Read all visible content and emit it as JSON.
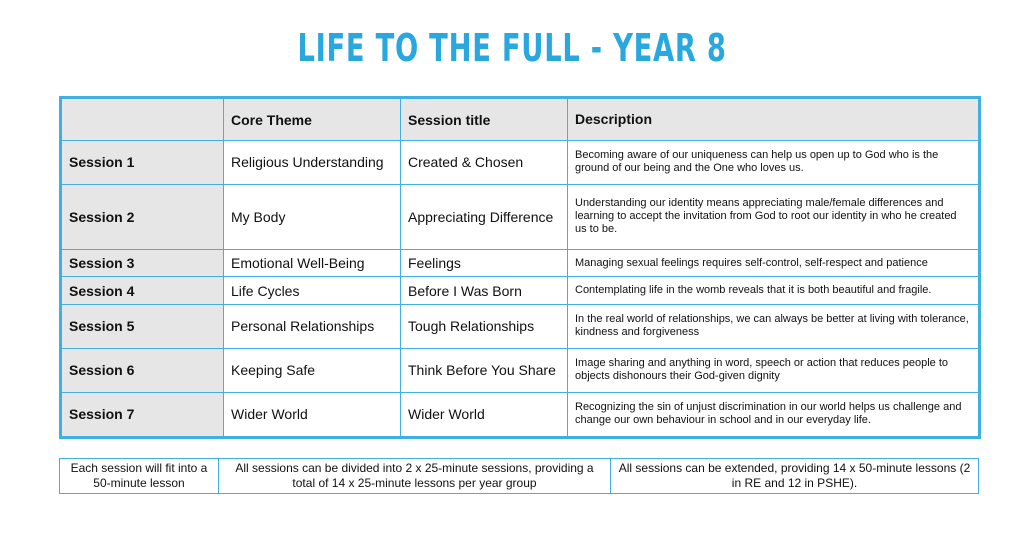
{
  "header": {
    "title": "LIFE TO THE FULL - YEAR 8"
  },
  "table": {
    "columns": [
      "",
      "Core Theme",
      "Session title",
      "Description"
    ],
    "rows": [
      [
        "Session 1",
        "Religious Understanding",
        "Created & Chosen",
        "Becoming aware of our uniqueness can help us open up to God who is the ground of our being and the One who loves us."
      ],
      [
        "Session 2",
        "My Body",
        "Appreciating Difference",
        "Understanding our identity means appreciating male/female differences and learning to accept the invitation from God to root our identity in who he created us to be."
      ],
      [
        "Session 3",
        "Emotional Well-Being",
        "Feelings",
        "Managing sexual feelings requires self-control, self-respect and patience"
      ],
      [
        "Session 4",
        "Life Cycles",
        "Before I Was Born",
        "Contemplating life in the womb reveals that it is both beautiful and fragile."
      ],
      [
        "Session 5",
        "Personal Relationships",
        "Tough Relationships",
        "In the real world of relationships, we can always be better at living with tolerance, kindness and forgiveness"
      ],
      [
        "Session 6",
        "Keeping Safe",
        "Think Before You Share",
        "Image sharing and anything in word, speech or action that reduces people to objects dishonours their God-given dignity"
      ],
      [
        "Session 7",
        "Wider World",
        "Wider World",
        "Recognizing the sin of unjust discrimination in our world helps us challenge and change our own behaviour in school and in our everyday life."
      ]
    ]
  },
  "notes": [
    "Each session will fit into a 50-minute lesson",
    "All sessions can be divided into 2 x 25-minute sessions, providing a total of 14 x 25-minute lessons per year group",
    "All sessions can be extended, providing 14 x 50-minute lessons (2 in RE and 12 in PSHE)."
  ]
}
